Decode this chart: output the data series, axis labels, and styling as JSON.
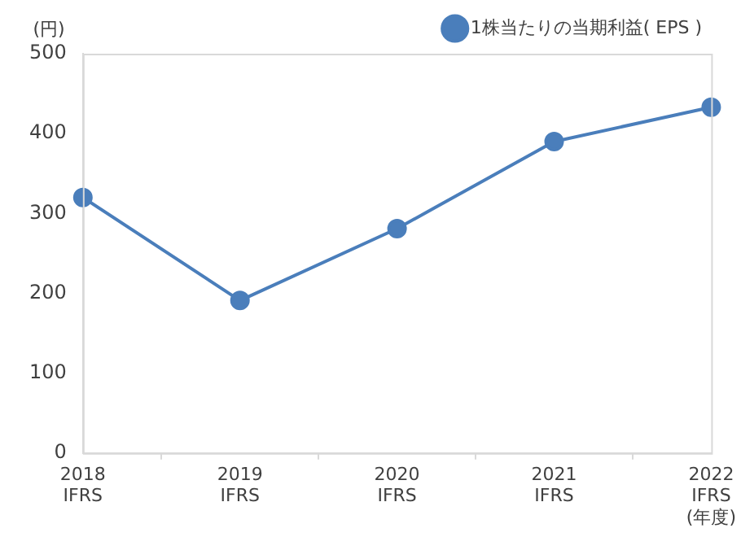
{
  "chart_data": {
    "type": "line",
    "ylabel": "(円)",
    "categories": [
      "2018\nIFRS",
      "2019\nIFRS",
      "2020\nIFRS",
      "2021\nIFRS",
      "2022\nIFRS\n(年度)"
    ],
    "series": [
      {
        "name": "1株当たりの当期利益( EPS )",
        "color": "#4a7ebb",
        "values": [
          320,
          191,
          281,
          390,
          433
        ]
      }
    ],
    "ylim": [
      0,
      500
    ],
    "yticks": [
      0,
      100,
      200,
      300,
      400,
      500
    ],
    "grid": false,
    "legend": "top right",
    "marker": "circle",
    "line_style": "solid"
  }
}
